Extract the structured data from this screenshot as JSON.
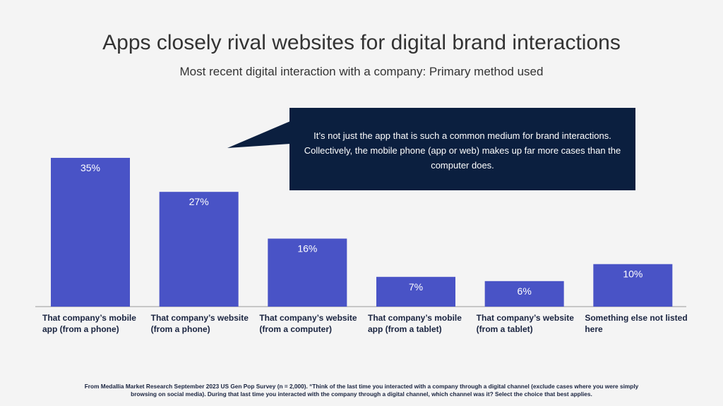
{
  "chart_data": {
    "type": "bar",
    "title": "Apps closely rival websites for digital brand interactions",
    "subtitle": "Most recent digital interaction with a company: Primary method used",
    "categories": [
      "That company’s mobile app (from a phone)",
      "That company’s website (from a phone)",
      "That company’s website (from a computer)",
      "That company’s mobile app (from a tablet)",
      "That company’s website (from a tablet)",
      "Something else not listed here"
    ],
    "values": [
      35,
      27,
      16,
      7,
      6,
      10
    ],
    "value_labels": [
      "35%",
      "27%",
      "16%",
      "7%",
      "6%",
      "10%"
    ],
    "color": "#4953c6",
    "annotation": "It’s not just the app that is such a common medium for brand interactions. Collectively, the mobile phone (app or web) makes up far more cases than the computer does.",
    "footnote": "From Medallia Market Research September 2023 US Gen Pop Survey (n = 2,000).  “Think of the last time you interacted with a company through a digital channel (exclude cases where you were simply browsing on social media). During that last time you interacted with the company through a digital channel, which channel was it?  Select the choice that best applies."
  }
}
